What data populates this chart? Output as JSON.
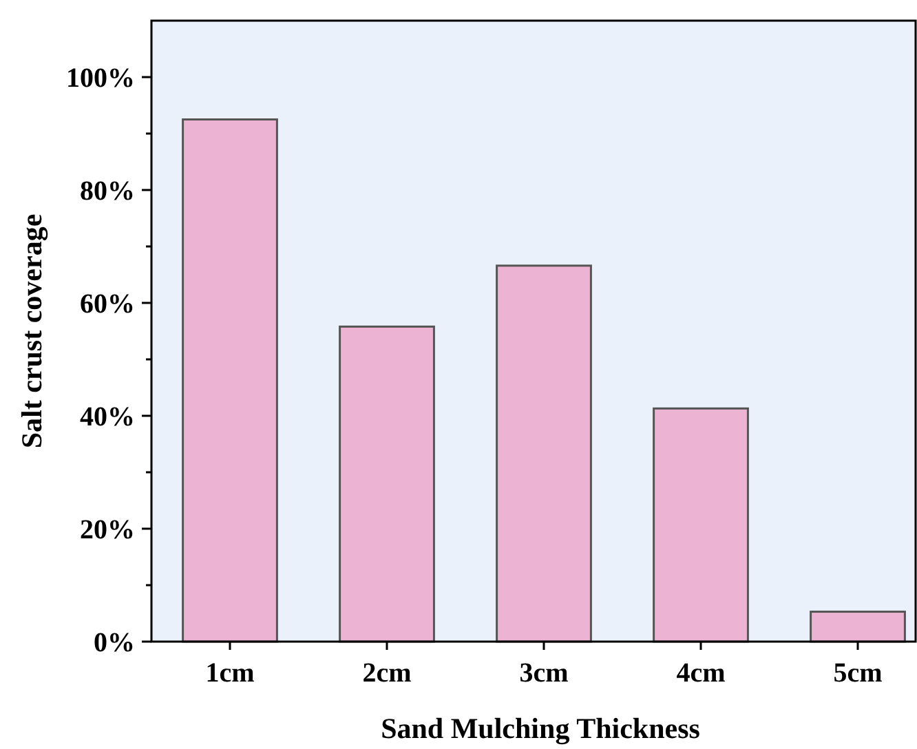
{
  "chart_data": {
    "type": "bar",
    "xlabel": "Sand Mulching Thickness",
    "ylabel": "Salt crust coverage",
    "categories": [
      "1cm",
      "2cm",
      "3cm",
      "4cm",
      "5cm"
    ],
    "values": [
      92.5,
      55.8,
      66.6,
      41.3,
      5.3
    ],
    "color": "#ecb4d2",
    "ylim": [
      0,
      110
    ],
    "yticks": [
      {
        "value": 0,
        "label": "0%"
      },
      {
        "value": 10,
        "label": null
      },
      {
        "value": 20,
        "label": "20%"
      },
      {
        "value": 30,
        "label": null
      },
      {
        "value": 40,
        "label": "40%"
      },
      {
        "value": 50,
        "label": null
      },
      {
        "value": 60,
        "label": "60%"
      },
      {
        "value": 70,
        "label": null
      },
      {
        "value": 80,
        "label": "80%"
      },
      {
        "value": 90,
        "label": null
      },
      {
        "value": 100,
        "label": "100%"
      }
    ],
    "grid": false
  }
}
